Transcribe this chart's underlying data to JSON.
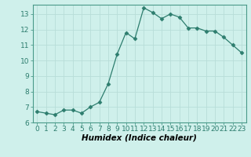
{
  "x": [
    0,
    1,
    2,
    3,
    4,
    5,
    6,
    7,
    8,
    9,
    10,
    11,
    12,
    13,
    14,
    15,
    16,
    17,
    18,
    19,
    20,
    21,
    22,
    23
  ],
  "y": [
    6.7,
    6.6,
    6.5,
    6.8,
    6.8,
    6.6,
    7.0,
    7.3,
    8.5,
    10.4,
    11.8,
    11.4,
    13.4,
    13.1,
    12.7,
    13.0,
    12.8,
    12.1,
    12.1,
    11.9,
    11.9,
    11.5,
    11.0,
    10.5
  ],
  "line_color": "#2d7d6e",
  "marker": "D",
  "marker_size": 2.5,
  "bg_color": "#cff0eb",
  "grid_color": "#b8ddd8",
  "xlabel": "Humidex (Indice chaleur)",
  "ylim": [
    6,
    13.6
  ],
  "xlim": [
    -0.5,
    23.5
  ],
  "yticks": [
    6,
    7,
    8,
    9,
    10,
    11,
    12,
    13
  ],
  "xticks": [
    0,
    1,
    2,
    3,
    4,
    5,
    6,
    7,
    8,
    9,
    10,
    11,
    12,
    13,
    14,
    15,
    16,
    17,
    18,
    19,
    20,
    21,
    22,
    23
  ],
  "tick_fontsize": 6.5,
  "xlabel_fontsize": 7.5,
  "xlabel_fontstyle": "italic"
}
